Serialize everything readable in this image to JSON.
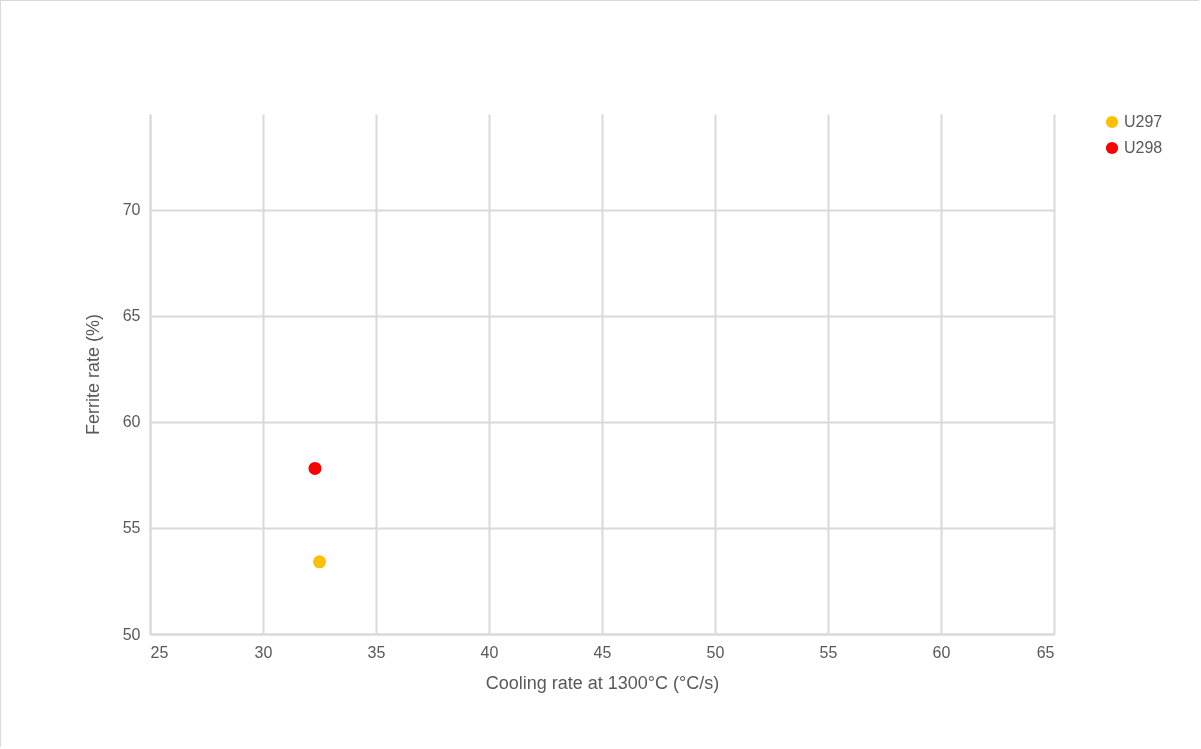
{
  "chart_data": {
    "type": "scatter",
    "xlabel": "Cooling rate at 1300°C (°C/s)",
    "ylabel": "Ferrite rate (%)",
    "series": [
      {
        "name": "U297",
        "color": "#ffc000",
        "x": [
          32.5
        ],
        "values": [
          53.4
        ]
      },
      {
        "name": "U298",
        "color": "#ff0000",
        "x": [
          32.3
        ],
        "values": [
          57.8
        ]
      }
    ],
    "xlim": [
      25,
      65
    ],
    "xticks": [
      25,
      30,
      35,
      40,
      45,
      50,
      55,
      60,
      65
    ],
    "ylim": [
      50,
      74.5
    ],
    "yticks": [
      50,
      55,
      60,
      65,
      70
    ],
    "grid": true,
    "legend": "right",
    "marker": "circle"
  }
}
